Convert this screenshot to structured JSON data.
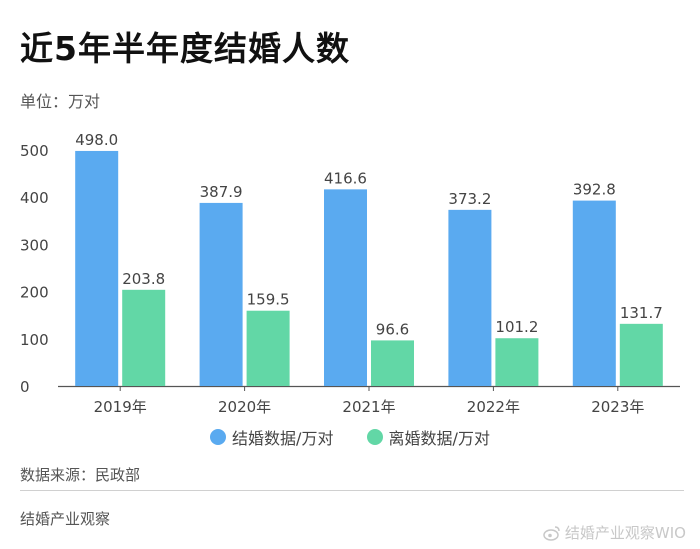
{
  "title": "近5年半年度结婚人数",
  "unit_label": "单位：万对",
  "source": "数据来源：民政部",
  "footer": "结婚产业观察",
  "watermark": "结婚产业观察WIO",
  "colors": {
    "marriage": "#5aaaf0",
    "divorce": "#62d7a6",
    "axis": "#555555"
  },
  "chart_data": {
    "type": "bar",
    "categories": [
      "2019年",
      "2020年",
      "2021年",
      "2022年",
      "2023年"
    ],
    "series": [
      {
        "name": "结婚数据/万对",
        "values": [
          498.0,
          387.9,
          416.6,
          373.2,
          392.8
        ],
        "labels": [
          "498.0",
          "387.9",
          "416.6",
          "373.2",
          "392.8"
        ]
      },
      {
        "name": "离婚数据/万对",
        "values": [
          203.8,
          159.5,
          96.6,
          101.2,
          131.7
        ],
        "labels": [
          "203.8",
          "159.5",
          "96.6",
          "101.2",
          "131.7"
        ]
      }
    ],
    "ylim": [
      0,
      500
    ],
    "yticks": [
      0,
      100,
      200,
      300,
      400,
      500
    ],
    "legend": "bottom"
  }
}
